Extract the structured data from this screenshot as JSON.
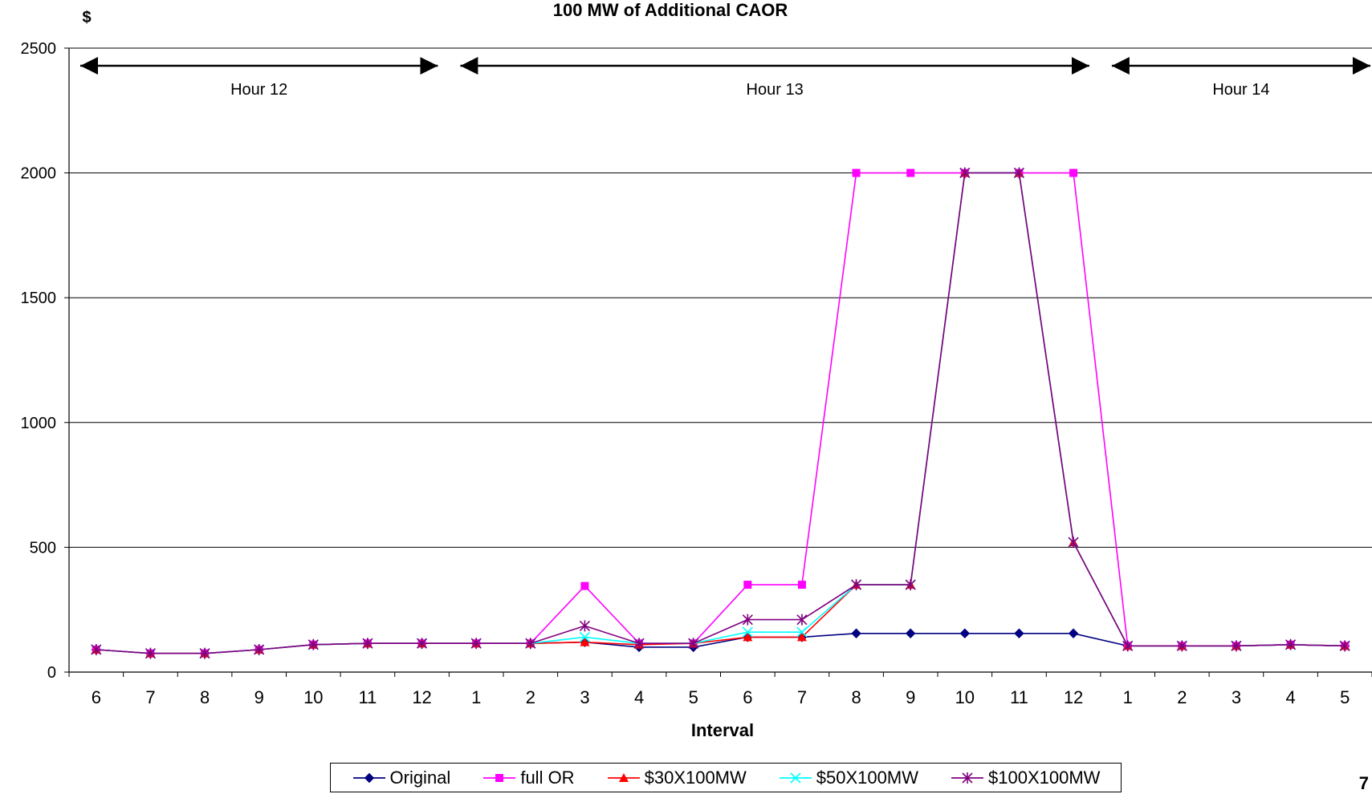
{
  "chart_data": {
    "type": "line",
    "title": "100 MW of Additional CAOR",
    "ylabel": "$",
    "xlabel": "Interval",
    "ylim": [
      0,
      2500
    ],
    "yticks": [
      0,
      500,
      1000,
      1500,
      2000,
      2500
    ],
    "categories": [
      "6",
      "7",
      "8",
      "9",
      "10",
      "11",
      "12",
      "1",
      "2",
      "3",
      "4",
      "5",
      "6",
      "7",
      "8",
      "9",
      "10",
      "11",
      "12",
      "1",
      "2",
      "3",
      "4",
      "5"
    ],
    "grid": true,
    "legend_position": "bottom",
    "hour_labels": [
      {
        "label": "Hour 12",
        "from": "6",
        "to": "12"
      },
      {
        "label": "Hour 13",
        "from": "1",
        "to": "12"
      },
      {
        "label": "Hour 14",
        "from": "1",
        "to": "5"
      }
    ],
    "series": [
      {
        "name": "Original",
        "color": "#000080",
        "marker": "diamond",
        "values": [
          90,
          75,
          75,
          90,
          110,
          115,
          115,
          115,
          115,
          120,
          100,
          100,
          140,
          140,
          155,
          155,
          155,
          155,
          155,
          105,
          105,
          105,
          110,
          105
        ]
      },
      {
        "name": "full OR",
        "color": "#FF00FF",
        "marker": "square",
        "values": [
          90,
          75,
          75,
          90,
          110,
          115,
          115,
          115,
          115,
          345,
          115,
          115,
          350,
          350,
          2000,
          2000,
          2000,
          2000,
          2000,
          105,
          105,
          105,
          110,
          105
        ]
      },
      {
        "name": "$30X100MW",
        "color": "#FF0000",
        "marker": "triangle",
        "values": [
          90,
          75,
          75,
          90,
          110,
          115,
          115,
          115,
          115,
          120,
          110,
          115,
          140,
          140,
          350,
          350,
          2000,
          2000,
          520,
          105,
          105,
          105,
          110,
          105
        ]
      },
      {
        "name": "$50X100MW",
        "color": "#00FFFF",
        "marker": "x",
        "values": [
          90,
          75,
          75,
          90,
          110,
          115,
          115,
          115,
          115,
          140,
          115,
          115,
          160,
          160,
          350,
          350,
          2000,
          2000,
          520,
          105,
          105,
          105,
          110,
          105
        ]
      },
      {
        "name": "$100X100MW",
        "color": "#800080",
        "marker": "star",
        "values": [
          90,
          75,
          75,
          90,
          110,
          115,
          115,
          115,
          115,
          185,
          115,
          115,
          210,
          210,
          350,
          350,
          2000,
          2000,
          520,
          105,
          105,
          105,
          110,
          105
        ]
      }
    ]
  },
  "page_number": "7"
}
